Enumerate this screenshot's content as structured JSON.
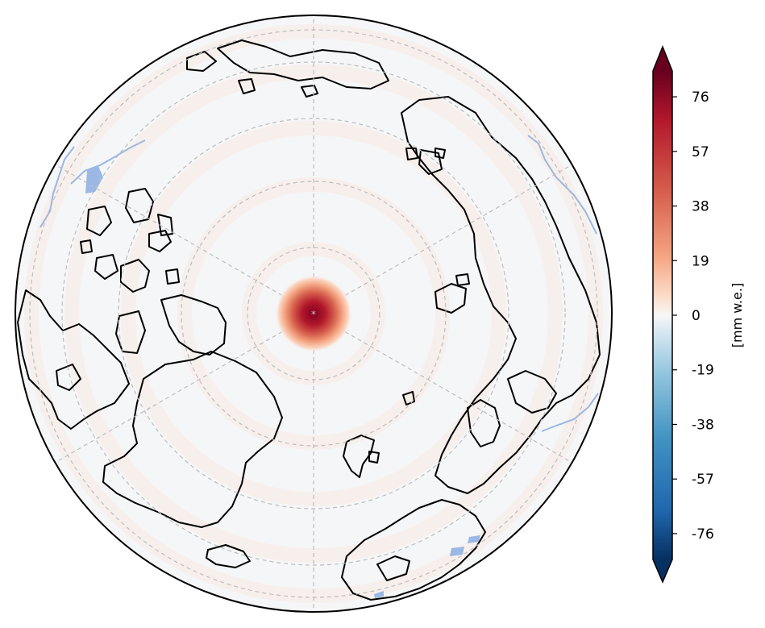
{
  "map": {
    "projection": "north-polar-orthographic",
    "features": [
      "coastlines",
      "lakes",
      "graticule"
    ],
    "colors": {
      "ocean_land": "#f5f6f7",
      "coastline": "#000000",
      "lakes": "#9ab8e3",
      "graticule": "#bdbdbd",
      "anomaly_max": "#7f0022"
    },
    "anomaly": {
      "location": "north-pole",
      "peak_value": 76
    }
  },
  "colorbar": {
    "label": "[mm w.e.]",
    "colormap": "RdBu_r",
    "extend": "both",
    "ticks": [
      "76",
      "57",
      "38",
      "19",
      "0",
      "-19",
      "-38",
      "-57",
      "-76"
    ],
    "tick_values": [
      76,
      57,
      38,
      19,
      0,
      -19,
      -38,
      -57,
      -76
    ],
    "range": [
      -85,
      85
    ]
  }
}
